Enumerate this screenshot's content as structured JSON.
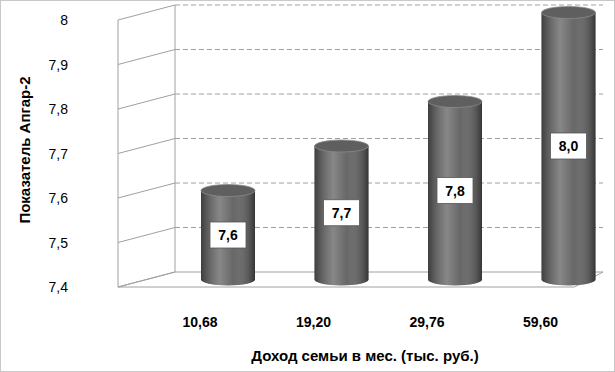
{
  "chart_data": {
    "type": "bar",
    "x_label": "Доход семьи в мес. (тыс. руб.)",
    "y_label": "Показатель Апгар-2",
    "categories": [
      "10,68",
      "19,20",
      "29,76",
      "59,60"
    ],
    "values": [
      7.6,
      7.7,
      7.8,
      8.0
    ],
    "value_labels": [
      "7,6",
      "7,7",
      "7,8",
      "8,0"
    ],
    "color": "#5f5f5f",
    "ylim": [
      7.4,
      8
    ],
    "yticks": [
      {
        "value": 7.4,
        "label": "7,4"
      },
      {
        "value": 7.5,
        "label": "7,5"
      },
      {
        "value": 7.6,
        "label": "7,6"
      },
      {
        "value": 7.7,
        "label": "7,7"
      },
      {
        "value": 7.8,
        "label": "7,8"
      },
      {
        "value": 7.9,
        "label": "7,9"
      },
      8
    ],
    "grid": true,
    "data_labels": true
  }
}
